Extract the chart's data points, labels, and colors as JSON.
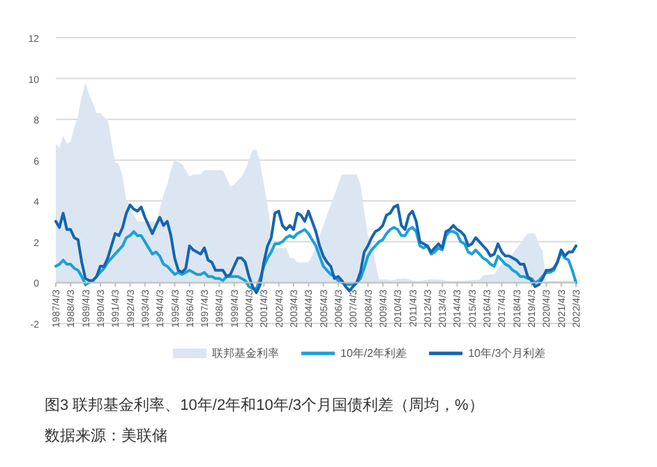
{
  "chart_data": {
    "type": "line",
    "title": "图3 联邦基金利率、10年/2年和10年/3个月国债利差（周均，%）",
    "annotations": [
      "数据来源：美联储"
    ],
    "xlim": [
      "1987-04-03",
      "2022-04-03"
    ],
    "ylim": [
      -2,
      12
    ],
    "yticks": [
      -2,
      0,
      2,
      4,
      6,
      8,
      10,
      12
    ],
    "xticks": [
      {
        "value": "1987-04-03",
        "label": "1987/4/3"
      },
      {
        "value": "1988-04-03",
        "label": "1988/4/3"
      },
      {
        "value": "1989-04-03",
        "label": "1989/4/3"
      },
      {
        "value": "1990-04-03",
        "label": "1990/4/3"
      },
      {
        "value": "1991-04-03",
        "label": "1991/4/3"
      },
      {
        "value": "1992-04-03",
        "label": "1992/4/3"
      },
      {
        "value": "1993-04-03",
        "label": "1993/4/3"
      },
      {
        "value": "1994-04-03",
        "label": "1994/4/3"
      },
      {
        "value": "1995-04-03",
        "label": "1995/4/3"
      },
      {
        "value": "1996-04-03",
        "label": "1996/4/3"
      },
      {
        "value": "1997-04-03",
        "label": "1997/4/3"
      },
      {
        "value": "1998-04-03",
        "label": "1998/4/3"
      },
      {
        "value": "1999-04-03",
        "label": "1999/4/3"
      },
      {
        "value": "2000-04-03",
        "label": "2000/4/3"
      },
      {
        "value": "2001-04-03",
        "label": "2001/4/3"
      },
      {
        "value": "2002-04-03",
        "label": "2002/4/3"
      },
      {
        "value": "2003-04-03",
        "label": "2003/4/3"
      },
      {
        "value": "2004-04-03",
        "label": "2004/4/3"
      },
      {
        "value": "2005-04-03",
        "label": "2005/4/3"
      },
      {
        "value": "2006-04-03",
        "label": "2006/4/3"
      },
      {
        "value": "2007-04-03",
        "label": "2007/4/3"
      },
      {
        "value": "2008-04-03",
        "label": "2008/4/3"
      },
      {
        "value": "2009-04-03",
        "label": "2009/4/3"
      },
      {
        "value": "2010-04-03",
        "label": "2010/4/3"
      },
      {
        "value": "2011-04-03",
        "label": "2011/4/3"
      },
      {
        "value": "2012-04-03",
        "label": "2012/4/3"
      },
      {
        "value": "2013-04-03",
        "label": "2013/4/3"
      },
      {
        "value": "2014-04-03",
        "label": "2014/4/3"
      },
      {
        "value": "2015-04-03",
        "label": "2015/4/3"
      },
      {
        "value": "2016-04-03",
        "label": "2016/4/3"
      },
      {
        "value": "2017-04-03",
        "label": "2017/4/3"
      },
      {
        "value": "2018-04-03",
        "label": "2018/4/3"
      },
      {
        "value": "2019-04-03",
        "label": "2019/4/3"
      },
      {
        "value": "2020-04-03",
        "label": "2020/4/3"
      },
      {
        "value": "2021-04-03",
        "label": "2021/4/3"
      },
      {
        "value": "2022-04-03",
        "label": "2022/4/3"
      }
    ],
    "grid": "y",
    "legend": "bottom",
    "series": [
      {
        "name": "联邦基金利率",
        "type": "area",
        "color": "#dce6f2",
        "values": [
          6.8,
          6.6,
          7.2,
          6.8,
          6.9,
          7.6,
          8.2,
          9.1,
          9.8,
          9.2,
          8.8,
          8.3,
          8.3,
          8.1,
          8.0,
          6.9,
          5.9,
          5.8,
          5.2,
          4.0,
          3.8,
          3.3,
          3.0,
          3.0,
          3.0,
          3.0,
          3.0,
          3.0,
          3.6,
          4.3,
          4.8,
          5.5,
          6.0,
          5.9,
          5.8,
          5.5,
          5.2,
          5.3,
          5.3,
          5.3,
          5.5,
          5.5,
          5.5,
          5.5,
          5.5,
          5.5,
          5.1,
          4.7,
          4.8,
          5.0,
          5.2,
          5.5,
          6.0,
          6.5,
          6.5,
          5.9,
          4.8,
          3.8,
          2.5,
          1.7,
          1.7,
          1.7,
          1.7,
          1.2,
          1.2,
          1.0,
          1.0,
          1.0,
          1.0,
          1.3,
          1.8,
          2.3,
          2.8,
          3.3,
          3.8,
          4.3,
          4.8,
          5.3,
          5.3,
          5.3,
          5.3,
          5.3,
          4.8,
          3.5,
          2.3,
          2.0,
          1.0,
          0.15,
          0.15,
          0.15,
          0.12,
          0.12,
          0.2,
          0.18,
          0.19,
          0.16,
          0.1,
          0.08,
          0.08,
          0.1,
          0.15,
          0.16,
          0.15,
          0.14,
          0.14,
          0.09,
          0.08,
          0.07,
          0.09,
          0.09,
          0.09,
          0.11,
          0.12,
          0.13,
          0.13,
          0.36,
          0.37,
          0.4,
          0.4,
          0.66,
          0.91,
          1.16,
          1.15,
          1.42,
          1.69,
          1.91,
          2.19,
          2.4,
          2.41,
          2.4,
          1.83,
          1.55,
          0.05,
          0.09,
          0.09,
          0.09,
          0.07,
          0.1,
          0.08,
          0.08,
          0.33
        ]
      },
      {
        "name": "10年/2年利差",
        "type": "line",
        "color": "#1ca0d8",
        "values": [
          0.8,
          0.9,
          1.1,
          0.9,
          0.9,
          0.7,
          0.6,
          0.3,
          -0.1,
          0.0,
          0.1,
          0.3,
          0.5,
          0.7,
          1.0,
          1.2,
          1.4,
          1.6,
          1.8,
          2.2,
          2.3,
          2.5,
          2.3,
          2.3,
          2.0,
          1.7,
          1.4,
          1.5,
          1.3,
          0.9,
          0.8,
          0.6,
          0.4,
          0.5,
          0.4,
          0.5,
          0.6,
          0.5,
          0.4,
          0.4,
          0.5,
          0.3,
          0.3,
          0.2,
          0.2,
          0.1,
          0.3,
          0.3,
          0.3,
          0.3,
          0.2,
          0.1,
          -0.2,
          -0.3,
          -0.3,
          0.2,
          0.8,
          1.2,
          1.5,
          1.9,
          1.9,
          2.0,
          2.2,
          2.3,
          2.2,
          2.4,
          2.5,
          2.6,
          2.4,
          2.1,
          1.8,
          1.3,
          0.8,
          0.6,
          0.4,
          0.3,
          0.1,
          0.0,
          -0.1,
          -0.1,
          -0.1,
          0.0,
          0.2,
          0.7,
          1.3,
          1.6,
          1.8,
          2.0,
          2.1,
          2.4,
          2.6,
          2.7,
          2.6,
          2.3,
          2.3,
          2.6,
          2.7,
          2.5,
          1.8,
          1.7,
          1.8,
          1.4,
          1.5,
          1.7,
          1.6,
          2.3,
          2.5,
          2.5,
          2.4,
          2.0,
          1.9,
          1.5,
          1.4,
          1.6,
          1.4,
          1.2,
          1.1,
          0.9,
          0.8,
          1.3,
          1.1,
          0.9,
          0.8,
          0.6,
          0.5,
          0.3,
          0.3,
          0.2,
          0.2,
          0.0,
          0.1,
          0.3,
          0.5,
          0.5,
          0.6,
          1.0,
          1.5,
          1.2,
          1.1,
          0.6,
          0.0
        ]
      },
      {
        "name": "10年/3个月利差",
        "type": "line",
        "color": "#1565b0",
        "values": [
          3.0,
          2.7,
          3.4,
          2.6,
          2.6,
          2.2,
          2.1,
          1.0,
          0.2,
          0.1,
          0.1,
          0.3,
          0.8,
          0.8,
          1.2,
          1.8,
          2.4,
          2.3,
          2.7,
          3.4,
          3.8,
          3.6,
          3.5,
          3.7,
          3.2,
          2.8,
          2.4,
          2.8,
          3.2,
          2.8,
          3.0,
          2.3,
          1.2,
          0.6,
          0.5,
          0.7,
          1.8,
          1.6,
          1.5,
          1.4,
          1.7,
          1.1,
          1.0,
          0.6,
          0.6,
          0.6,
          0.3,
          0.4,
          0.8,
          1.2,
          1.2,
          1.0,
          0.3,
          -0.2,
          -0.5,
          -0.1,
          1.0,
          1.8,
          2.2,
          3.4,
          3.5,
          2.8,
          2.6,
          2.8,
          2.6,
          3.4,
          3.3,
          3.0,
          3.5,
          3.0,
          2.5,
          1.8,
          1.3,
          1.0,
          0.8,
          0.2,
          0.3,
          0.1,
          -0.2,
          -0.4,
          -0.2,
          0.0,
          0.5,
          1.5,
          1.8,
          2.2,
          2.5,
          2.6,
          2.8,
          3.3,
          3.4,
          3.7,
          3.8,
          2.8,
          2.6,
          3.3,
          3.5,
          3.0,
          2.0,
          1.9,
          1.8,
          1.5,
          1.7,
          1.9,
          1.7,
          2.5,
          2.6,
          2.8,
          2.6,
          2.5,
          2.3,
          1.8,
          1.9,
          2.2,
          2.0,
          1.8,
          1.6,
          1.3,
          1.4,
          1.9,
          1.5,
          1.3,
          1.3,
          1.2,
          1.1,
          0.9,
          0.9,
          0.3,
          0.1,
          -0.2,
          -0.1,
          0.2,
          0.6,
          0.6,
          0.7,
          1.0,
          1.6,
          1.3,
          1.5,
          1.5,
          1.8
        ]
      }
    ],
    "x": [
      "1987-04-03",
      "1987-07",
      "1987-10",
      "1988-01",
      "1988-04",
      "1988-07",
      "1988-10",
      "1989-01",
      "1989-04",
      "1989-07",
      "1989-10",
      "1990-01",
      "1990-04",
      "1990-07",
      "1990-10",
      "1991-01",
      "1991-04",
      "1991-07",
      "1991-10",
      "1992-01",
      "1992-04",
      "1992-07",
      "1992-10",
      "1993-01",
      "1993-04",
      "1993-07",
      "1993-10",
      "1994-01",
      "1994-04",
      "1994-07",
      "1994-10",
      "1995-01",
      "1995-04",
      "1995-07",
      "1995-10",
      "1996-01",
      "1996-04",
      "1996-07",
      "1996-10",
      "1997-01",
      "1997-04",
      "1997-07",
      "1997-10",
      "1998-01",
      "1998-04",
      "1998-07",
      "1998-10",
      "1999-01",
      "1999-04",
      "1999-07",
      "1999-10",
      "2000-01",
      "2000-04",
      "2000-07",
      "2000-10",
      "2001-01",
      "2001-04",
      "2001-07",
      "2001-10",
      "2002-01",
      "2002-04",
      "2002-07",
      "2002-10",
      "2003-01",
      "2003-04",
      "2003-07",
      "2003-10",
      "2004-01",
      "2004-04",
      "2004-07",
      "2004-10",
      "2005-01",
      "2005-04",
      "2005-07",
      "2005-10",
      "2006-01",
      "2006-04",
      "2006-07",
      "2006-10",
      "2007-01",
      "2007-04",
      "2007-07",
      "2007-10",
      "2008-01",
      "2008-04",
      "2008-07",
      "2008-10",
      "2009-01",
      "2009-04",
      "2009-07",
      "2009-10",
      "2010-01",
      "2010-04",
      "2010-07",
      "2010-10",
      "2011-01",
      "2011-04",
      "2011-07",
      "2011-10",
      "2012-01",
      "2012-04",
      "2012-07",
      "2012-10",
      "2013-01",
      "2013-04",
      "2013-07",
      "2013-10",
      "2014-01",
      "2014-04",
      "2014-07",
      "2014-10",
      "2015-01",
      "2015-04",
      "2015-07",
      "2015-10",
      "2016-01",
      "2016-04",
      "2016-07",
      "2016-10",
      "2017-01",
      "2017-04",
      "2017-07",
      "2017-10",
      "2018-01",
      "2018-04",
      "2018-07",
      "2018-10",
      "2019-01",
      "2019-04",
      "2019-07",
      "2019-10",
      "2020-01",
      "2020-04",
      "2020-07",
      "2020-10",
      "2021-01",
      "2021-04",
      "2021-07",
      "2021-10",
      "2022-01",
      "2022-04"
    ]
  }
}
